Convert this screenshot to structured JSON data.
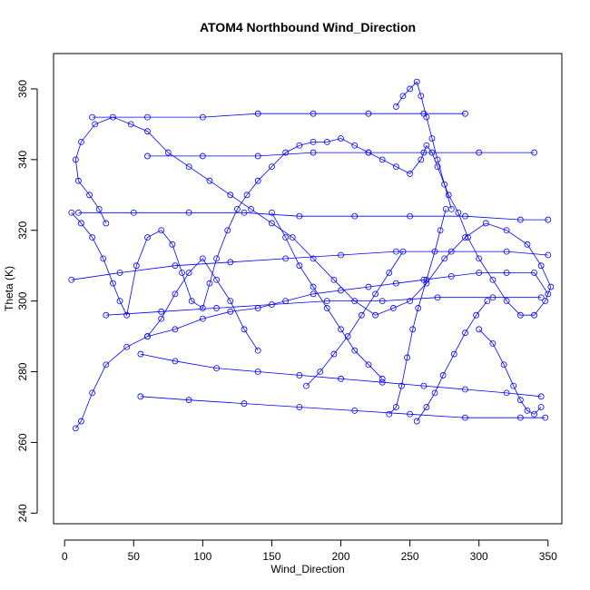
{
  "chart_data": {
    "type": "line",
    "title": "ATOM4 Northbound Wind_Direction",
    "xlabel": "Wind_Direction",
    "ylabel": "Theta (K)",
    "xlim": [
      -8,
      360
    ],
    "ylim": [
      237,
      370
    ],
    "xticks": [
      0,
      50,
      100,
      150,
      200,
      250,
      300,
      350
    ],
    "yticks": [
      240,
      260,
      280,
      300,
      320,
      340,
      360
    ],
    "markers": "open-circle",
    "series_color": "#0000ff",
    "series": [
      {
        "x": [
          5,
          12,
          20,
          28,
          35,
          40,
          45,
          52,
          60,
          70,
          78,
          85,
          92,
          100,
          105,
          110,
          118,
          125,
          132,
          140,
          150,
          160,
          170,
          180,
          190,
          200,
          210,
          220,
          230,
          240,
          250,
          258,
          262,
          266,
          270,
          278,
          285,
          292,
          300,
          310,
          320,
          330,
          340,
          348,
          352,
          345,
          335,
          320,
          305,
          290,
          275,
          262,
          250,
          238,
          225,
          210,
          195,
          180,
          165,
          150,
          135,
          120,
          105,
          90,
          75,
          60,
          48,
          35,
          22,
          12,
          8,
          10,
          18,
          25,
          30
        ],
        "y": [
          325,
          322,
          318,
          312,
          305,
          300,
          296,
          310,
          318,
          320,
          316,
          308,
          300,
          298,
          305,
          312,
          320,
          326,
          330,
          334,
          338,
          342,
          344,
          345,
          345,
          346,
          344,
          342,
          340,
          338,
          336,
          340,
          344,
          342,
          338,
          330,
          325,
          318,
          312,
          306,
          300,
          296,
          296,
          300,
          304,
          310,
          316,
          320,
          322,
          318,
          312,
          305,
          300,
          298,
          296,
          300,
          306,
          312,
          318,
          322,
          326,
          330,
          334,
          338,
          342,
          348,
          350,
          352,
          350,
          345,
          340,
          334,
          330,
          326,
          322
        ]
      },
      {
        "x": [
          8,
          12,
          20,
          30,
          45,
          60,
          80,
          100,
          120,
          140,
          160,
          180,
          200,
          220,
          240,
          260,
          280,
          300,
          320,
          340,
          350
        ],
        "y": [
          264,
          266,
          274,
          282,
          287,
          290,
          292,
          295,
          297,
          298,
          300,
          302,
          303,
          304,
          305,
          306,
          307,
          308,
          308,
          308,
          302
        ]
      },
      {
        "x": [
          55,
          80,
          110,
          140,
          170,
          200,
          230,
          260,
          290,
          320,
          345
        ],
        "y": [
          285,
          283,
          281,
          280,
          279,
          278,
          277,
          276,
          275,
          274,
          273
        ]
      },
      {
        "x": [
          55,
          90,
          130,
          170,
          210,
          250,
          290,
          330,
          348
        ],
        "y": [
          273,
          272,
          271,
          270,
          269,
          268,
          267,
          267,
          267
        ]
      },
      {
        "x": [
          5,
          40,
          80,
          120,
          160,
          200,
          240,
          280,
          320,
          350
        ],
        "y": [
          306,
          308,
          310,
          311,
          312,
          313,
          314,
          314,
          314,
          313
        ]
      },
      {
        "x": [
          60,
          100,
          140,
          180,
          220,
          260,
          300,
          340
        ],
        "y": [
          341,
          341,
          341,
          342,
          342,
          342,
          342,
          342
        ]
      },
      {
        "x": [
          20,
          60,
          100,
          140,
          180,
          220,
          260,
          290
        ],
        "y": [
          352,
          352,
          352,
          353,
          353,
          353,
          353,
          353
        ]
      },
      {
        "x": [
          30,
          70,
          110,
          150,
          190,
          230,
          270,
          310,
          345
        ],
        "y": [
          296,
          297,
          298,
          299,
          300,
          300,
          301,
          301,
          301
        ]
      },
      {
        "x": [
          10,
          50,
          90,
          130,
          170,
          210,
          250,
          290,
          330,
          350
        ],
        "y": [
          325,
          325,
          325,
          325,
          324,
          324,
          324,
          324,
          323,
          323
        ]
      },
      {
        "x": [
          240,
          245,
          250,
          255,
          258,
          262,
          266,
          270,
          275,
          280
        ],
        "y": [
          355,
          358,
          360,
          362,
          358,
          352,
          346,
          340,
          333,
          326
        ]
      },
      {
        "x": [
          235,
          240,
          244,
          248,
          252,
          256,
          262,
          268,
          272,
          276
        ],
        "y": [
          268,
          270,
          276,
          284,
          292,
          298,
          306,
          314,
          320,
          326
        ]
      },
      {
        "x": [
          175,
          185,
          195,
          205,
          215,
          225,
          235,
          245
        ],
        "y": [
          276,
          280,
          285,
          290,
          296,
          302,
          308,
          314
        ]
      },
      {
        "x": [
          300,
          310,
          318,
          325,
          330,
          335,
          340,
          345
        ],
        "y": [
          292,
          288,
          282,
          276,
          272,
          269,
          268,
          270
        ]
      },
      {
        "x": [
          60,
          70,
          80,
          90,
          100,
          110,
          120,
          130,
          140
        ],
        "y": [
          290,
          295,
          302,
          308,
          312,
          306,
          300,
          292,
          286
        ]
      },
      {
        "x": [
          150,
          160,
          170,
          180,
          190,
          200,
          210,
          220,
          230
        ],
        "y": [
          325,
          318,
          310,
          304,
          298,
          292,
          286,
          282,
          278
        ]
      },
      {
        "x": [
          255,
          262,
          268,
          274,
          282,
          290,
          298,
          306
        ],
        "y": [
          266,
          270,
          274,
          279,
          285,
          291,
          296,
          300
        ]
      }
    ]
  }
}
